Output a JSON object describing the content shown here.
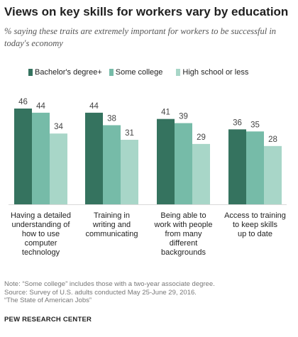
{
  "title": "Views on key skills for workers vary by education",
  "subtitle": "% saying these traits are extremely important for workers to be successful in today's economy",
  "colors": {
    "bachelors": "#35735f",
    "some_college": "#76bba8",
    "high_school": "#a8d6c8"
  },
  "chart_data": {
    "type": "bar",
    "categories": [
      "Having a detailed understanding of how to use computer technology",
      "Training in writing and communicating",
      "Being able to work with people from many different backgrounds",
      "Access to training to keep skills up to date"
    ],
    "category_lines": [
      [
        "Having a detailed",
        "understanding of",
        "how to use",
        "computer",
        "technology"
      ],
      [
        "Training in",
        "writing and",
        "communicating"
      ],
      [
        "Being able to",
        "work with people",
        "from many",
        "different",
        "backgrounds"
      ],
      [
        "Access to training",
        "to keep skills",
        "up to date"
      ]
    ],
    "series": [
      {
        "name": "Bachelor's degree+",
        "values": [
          46,
          44,
          41,
          36
        ],
        "color": "#35735f"
      },
      {
        "name": "Some college",
        "values": [
          44,
          38,
          39,
          35
        ],
        "color": "#76bba8"
      },
      {
        "name": "High school or less",
        "values": [
          34,
          31,
          29,
          28
        ],
        "color": "#a8d6c8"
      }
    ],
    "ylim": [
      0,
      46
    ],
    "grid": false,
    "legend_position": "top"
  },
  "notes": {
    "note": "Note: “Some college” includes those with a two-year associate degree.",
    "source": "Source: Survey of U.S. adults conducted May 25-June 29, 2016.",
    "report": "“The State of American Jobs”"
  },
  "brand": "PEW RESEARCH CENTER"
}
